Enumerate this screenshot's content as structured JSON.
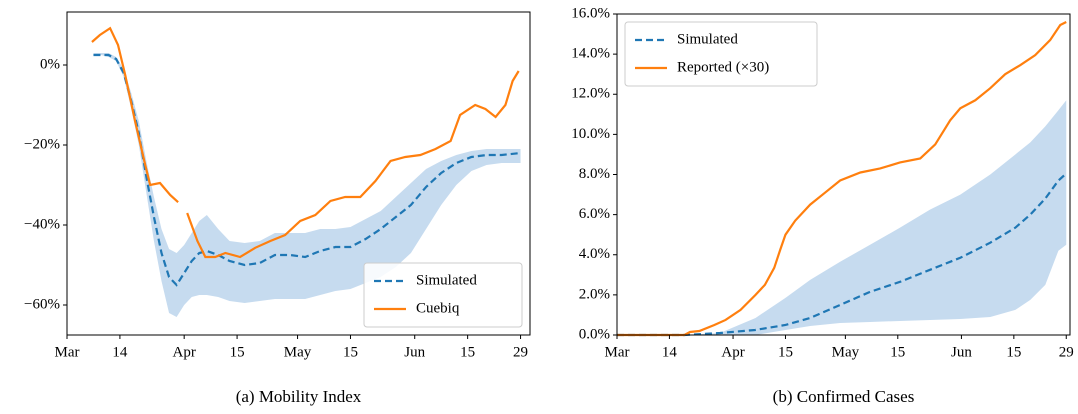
{
  "chart_data": [
    {
      "type": "line",
      "caption": "(a) Mobility Index",
      "legend": "lower right",
      "xlim": [
        0,
        122.5
      ],
      "xticks": [
        {
          "value": 0,
          "label": "Mar"
        },
        14,
        {
          "value": 31,
          "label": "Apr"
        },
        {
          "value": 45,
          "label": "15"
        },
        {
          "value": 61,
          "label": "May"
        },
        {
          "value": 75,
          "label": "15"
        },
        {
          "value": 92,
          "label": "Jun"
        },
        {
          "value": 106,
          "label": "15"
        },
        {
          "value": 120,
          "label": "29"
        }
      ],
      "ylim": [
        -67.5,
        13.25
      ],
      "yticks": [
        {
          "value": -60,
          "label": "−60%"
        },
        {
          "value": -40,
          "label": "−40%"
        },
        {
          "value": -20,
          "label": "−20%"
        },
        {
          "value": 0,
          "label": "0%"
        }
      ],
      "band": {
        "color": "#c6dbef",
        "x": [
          7,
          9,
          11,
          13,
          15,
          17,
          19,
          21,
          23,
          25,
          27,
          29,
          31,
          33,
          35,
          37,
          40,
          43,
          47,
          51,
          55,
          59,
          63,
          67,
          71,
          75,
          79,
          83,
          87,
          91,
          95,
          99,
          103,
          107,
          111,
          115,
          120
        ],
        "lower": [
          2.5,
          2.5,
          2,
          1,
          -3,
          -11,
          -20,
          -32,
          -44,
          -54,
          -62,
          -63,
          -60,
          -58,
          -57.5,
          -57.5,
          -58,
          -59,
          -59.5,
          -59,
          -58.5,
          -58.5,
          -58.5,
          -57.5,
          -56.5,
          -56,
          -54.5,
          -53,
          -50.5,
          -47,
          -41,
          -35,
          -30,
          -26.5,
          -25,
          -24.5,
          -24.5
        ],
        "upper": [
          3,
          3,
          3,
          2,
          -1,
          -7,
          -14,
          -24,
          -33,
          -41,
          -46,
          -47,
          -45,
          -42,
          -39,
          -37.5,
          -41,
          -44,
          -44.5,
          -44,
          -42,
          -42,
          -42,
          -41,
          -41,
          -40.5,
          -38.5,
          -36.5,
          -33,
          -29.5,
          -26,
          -24,
          -22.5,
          -21.5,
          -21,
          -21,
          -21
        ]
      },
      "series": [
        {
          "name": "Simulated",
          "color": "#1f77b4",
          "linestyle": "dashed",
          "x": [
            7,
            9,
            11,
            13,
            15,
            17,
            19,
            21,
            23,
            25,
            27,
            29,
            31,
            33,
            35,
            37,
            40,
            43,
            47,
            51,
            55,
            59,
            63,
            67,
            71,
            75,
            79,
            83,
            87,
            91,
            95,
            99,
            103,
            107,
            111,
            115,
            120
          ],
          "values": [
            2.5,
            2.5,
            2.5,
            1.5,
            -2,
            -9,
            -17,
            -28,
            -38,
            -47,
            -53,
            -55,
            -52,
            -49,
            -47,
            -46.5,
            -47.5,
            -49,
            -50,
            -49.5,
            -47.5,
            -47.5,
            -48,
            -46.5,
            -45.5,
            -45.5,
            -43.5,
            -41,
            -38,
            -35,
            -30.5,
            -27,
            -24.5,
            -23,
            -22.5,
            -22.5,
            -22
          ]
        },
        {
          "name": "Cuebiq",
          "color": "#ff7f0e",
          "linestyle": "solid",
          "x": [
            6.6,
            8.7,
            11.4,
            13.5,
            15.4,
            18,
            20.7,
            22,
            24.6,
            27.3,
            29.4,
            30.5,
            31.8,
            34.5,
            36.6,
            39.2,
            41.9,
            45.8,
            49.8,
            53.8,
            57.7,
            61.7,
            65.7,
            69.7,
            73.6,
            77.6,
            81.6,
            85.6,
            89.5,
            93.5,
            97.5,
            101.5,
            104,
            108,
            110.7,
            113.4,
            116,
            117.9,
            119.5
          ],
          "values": [
            5.75,
            7.5,
            9.2,
            5,
            -2.5,
            -14,
            -25,
            -30,
            -29.5,
            -32.5,
            -34.3,
            null,
            -37,
            -44,
            -48,
            -48,
            -47,
            -48,
            -45.7,
            -44,
            -42.5,
            -39,
            -37.5,
            -34,
            -33,
            -33,
            -29,
            -24,
            -23,
            -22.5,
            -21,
            -19,
            -12.5,
            -10,
            -11,
            -13,
            -10,
            -4,
            -1.5
          ]
        }
      ]
    },
    {
      "type": "line",
      "caption": "(b) Confirmed Cases",
      "legend": "upper left",
      "xlim": [
        0,
        121
      ],
      "xticks": [
        {
          "value": 0,
          "label": "Mar"
        },
        14,
        {
          "value": 31,
          "label": "Apr"
        },
        {
          "value": 45,
          "label": "15"
        },
        {
          "value": 61,
          "label": "May"
        },
        {
          "value": 75,
          "label": "15"
        },
        {
          "value": 92,
          "label": "Jun"
        },
        {
          "value": 106,
          "label": "15"
        },
        {
          "value": 120,
          "label": "29"
        }
      ],
      "ylim": [
        0,
        16
      ],
      "yticks": [
        {
          "value": 0,
          "label": "0.0%"
        },
        {
          "value": 2,
          "label": "2.0%"
        },
        {
          "value": 4,
          "label": "4.0%"
        },
        {
          "value": 6,
          "label": "6.0%"
        },
        {
          "value": 8,
          "label": "8.0%"
        },
        {
          "value": 10,
          "label": "10.0%"
        },
        {
          "value": 12,
          "label": "12.0%"
        },
        {
          "value": 14,
          "label": "14.0%"
        },
        {
          "value": 16,
          "label": "16.0%"
        }
      ],
      "band": {
        "color": "#c6dbef",
        "x": [
          0,
          18,
          27.5,
          37,
          45,
          51.6,
          59.6,
          67.6,
          75.6,
          83.6,
          91.7,
          99.7,
          106.4,
          110.4,
          114.4,
          117.9,
          120
        ],
        "lower": [
          0,
          0,
          0,
          0,
          0.25,
          0.45,
          0.6,
          0.65,
          0.7,
          0.75,
          0.8,
          0.9,
          1.25,
          1.75,
          2.5,
          4.2,
          4.5
        ],
        "upper": [
          0,
          0,
          0.1,
          0.85,
          1.85,
          2.75,
          3.65,
          4.5,
          5.35,
          6.25,
          7,
          8,
          9,
          9.6,
          10.4,
          11.2,
          11.7
        ]
      },
      "series": [
        {
          "name": "Simulated",
          "color": "#1f77b4",
          "linestyle": "dashed",
          "x": [
            0,
            18,
            27.5,
            36.9,
            45,
            51.6,
            59.6,
            67.6,
            75.6,
            83.6,
            91.7,
            99.7,
            106.4,
            110.4,
            114.4,
            117.9,
            120
          ],
          "values": [
            0,
            0,
            0.1,
            0.25,
            0.5,
            0.85,
            1.5,
            2.15,
            2.65,
            3.25,
            3.85,
            4.6,
            5.35,
            6,
            6.8,
            7.7,
            8.05
          ]
        },
        {
          "name": "Reported (×30)",
          "color": "#ff7f0e",
          "linestyle": "solid",
          "x": [
            0,
            18,
            19.5,
            22,
            26,
            29,
            33,
            37,
            39.5,
            42,
            43.6,
            45,
            47.6,
            51.6,
            55.6,
            59.6,
            65,
            70.3,
            75.6,
            81,
            85,
            89,
            91.7,
            95.7,
            99.7,
            103.7,
            107.7,
            111.7,
            115.7,
            118.4,
            120
          ],
          "values": [
            0,
            0,
            0.15,
            0.2,
            0.5,
            0.75,
            1.25,
            2,
            2.5,
            3.35,
            4.25,
            5,
            5.7,
            6.5,
            7.1,
            7.7,
            8.1,
            8.3,
            8.6,
            8.8,
            9.5,
            10.7,
            11.3,
            11.7,
            12.3,
            13,
            13.45,
            13.95,
            14.7,
            15.45,
            15.6
          ]
        }
      ]
    }
  ]
}
